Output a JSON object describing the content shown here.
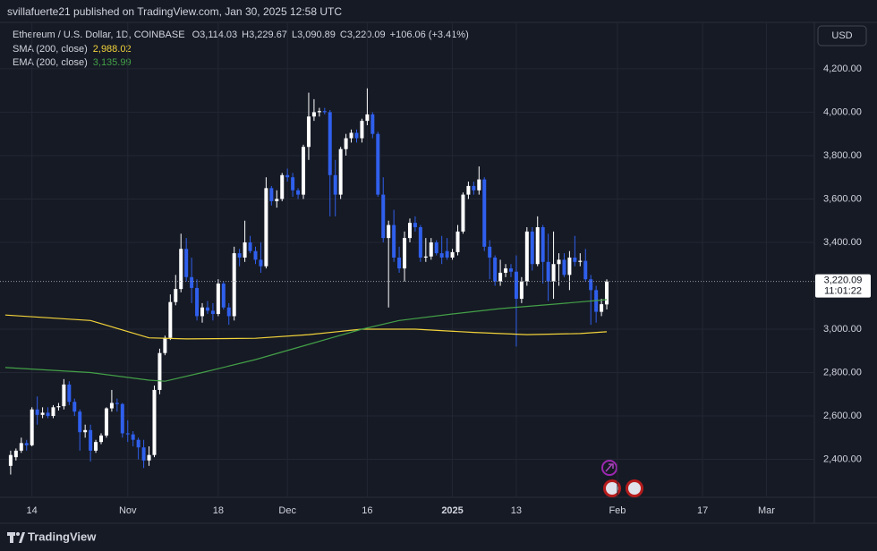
{
  "header": {
    "publisher": "svillafuerte21 published on TradingView.com, Jan 30, 2025 12:58 UTC",
    "currency": "USD",
    "brand": "TradingView"
  },
  "chart_data": {
    "type": "candlestick",
    "title": "Ethereum / U.S. Dollar, 1D, COINBASE",
    "ohlc_legend": {
      "open_key": "O",
      "open": "3,114.03",
      "high_key": "H",
      "high": "3,229.67",
      "low_key": "L",
      "low": "3,090.89",
      "close_key": "C",
      "close": "3,220.09",
      "change": "+106.06 (+3.41%)"
    },
    "up_color": "#ffffff",
    "down_color": "#2f5fec",
    "x": [
      "2024-10-10",
      "2024-10-11",
      "2024-10-12",
      "2024-10-13",
      "2024-10-14",
      "2024-10-15",
      "2024-10-16",
      "2024-10-17",
      "2024-10-18",
      "2024-10-19",
      "2024-10-20",
      "2024-10-21",
      "2024-10-22",
      "2024-10-23",
      "2024-10-24",
      "2024-10-25",
      "2024-10-26",
      "2024-10-27",
      "2024-10-28",
      "2024-10-29",
      "2024-10-30",
      "2024-10-31",
      "2024-11-01",
      "2024-11-02",
      "2024-11-03",
      "2024-11-04",
      "2024-11-05",
      "2024-11-06",
      "2024-11-07",
      "2024-11-08",
      "2024-11-09",
      "2024-11-10",
      "2024-11-11",
      "2024-11-12",
      "2024-11-13",
      "2024-11-14",
      "2024-11-15",
      "2024-11-16",
      "2024-11-17",
      "2024-11-18",
      "2024-11-19",
      "2024-11-20",
      "2024-11-21",
      "2024-11-22",
      "2024-11-23",
      "2024-11-24",
      "2024-11-25",
      "2024-11-26",
      "2024-11-27",
      "2024-11-28",
      "2024-11-29",
      "2024-11-30",
      "2024-12-01",
      "2024-12-02",
      "2024-12-03",
      "2024-12-04",
      "2024-12-05",
      "2024-12-06",
      "2024-12-07",
      "2024-12-08",
      "2024-12-09",
      "2024-12-10",
      "2024-12-11",
      "2024-12-12",
      "2024-12-13",
      "2024-12-14",
      "2024-12-15",
      "2024-12-16",
      "2024-12-17",
      "2024-12-18",
      "2024-12-19",
      "2024-12-20",
      "2024-12-21",
      "2024-12-22",
      "2024-12-23",
      "2024-12-24",
      "2024-12-25",
      "2024-12-26",
      "2024-12-27",
      "2024-12-28",
      "2024-12-29",
      "2024-12-30",
      "2024-12-31",
      "2025-01-01",
      "2025-01-02",
      "2025-01-03",
      "2025-01-04",
      "2025-01-05",
      "2025-01-06",
      "2025-01-07",
      "2025-01-08",
      "2025-01-09",
      "2025-01-10",
      "2025-01-11",
      "2025-01-12",
      "2025-01-13",
      "2025-01-14",
      "2025-01-15",
      "2025-01-16",
      "2025-01-17",
      "2025-01-18",
      "2025-01-19",
      "2025-01-20",
      "2025-01-21",
      "2025-01-22",
      "2025-01-23",
      "2025-01-24",
      "2025-01-25",
      "2025-01-26",
      "2025-01-27",
      "2025-01-28",
      "2025-01-29",
      "2025-01-30"
    ],
    "open": [
      2370,
      2410,
      2440,
      2475,
      2465,
      2630,
      2605,
      2615,
      2600,
      2640,
      2645,
      2745,
      2665,
      2620,
      2525,
      2535,
      2440,
      2480,
      2510,
      2635,
      2660,
      2655,
      2520,
      2515,
      2490,
      2455,
      2395,
      2420,
      2720,
      2890,
      2960,
      3125,
      3185,
      3370,
      3240,
      3190,
      3060,
      3100,
      3085,
      3070,
      3210,
      3100,
      3060,
      3350,
      3330,
      3400,
      3360,
      3320,
      3290,
      3650,
      3590,
      3600,
      3710,
      3700,
      3640,
      3620,
      3840,
      3980,
      4000,
      4005,
      4000,
      3710,
      3620,
      3830,
      3880,
      3905,
      3880,
      3960,
      3990,
      3900,
      3620,
      3420,
      3480,
      3330,
      3280,
      3420,
      3490,
      3470,
      3330,
      3335,
      3400,
      3350,
      3360,
      3330,
      3355,
      3450,
      3620,
      3660,
      3640,
      3690,
      3380,
      3330,
      3220,
      3260,
      3280,
      3265,
      3140,
      3220,
      3450,
      3300,
      3470,
      3310,
      3220,
      3300,
      3320,
      3250,
      3330,
      3310,
      3315,
      3230,
      3180,
      3080,
      3114.03
    ],
    "high": [
      2440,
      2450,
      2500,
      2490,
      2640,
      2690,
      2640,
      2640,
      2650,
      2660,
      2770,
      2760,
      2680,
      2630,
      2560,
      2560,
      2490,
      2520,
      2640,
      2720,
      2680,
      2660,
      2580,
      2530,
      2500,
      2490,
      2460,
      2740,
      2910,
      2970,
      3160,
      3250,
      3440,
      3420,
      3330,
      3230,
      3120,
      3130,
      3120,
      3230,
      3220,
      3120,
      3380,
      3370,
      3500,
      3430,
      3380,
      3400,
      3700,
      3660,
      3640,
      3720,
      3740,
      3720,
      3650,
      3850,
      4090,
      4060,
      4020,
      4020,
      4010,
      3780,
      3840,
      3900,
      3920,
      3920,
      3970,
      4110,
      4000,
      3910,
      3700,
      3500,
      3550,
      3380,
      3450,
      3510,
      3520,
      3480,
      3420,
      3420,
      3410,
      3430,
      3420,
      3370,
      3480,
      3630,
      3680,
      3680,
      3750,
      3700,
      3410,
      3340,
      3320,
      3300,
      3300,
      3340,
      3240,
      3470,
      3470,
      3520,
      3480,
      3440,
      3450,
      3350,
      3350,
      3360,
      3430,
      3350,
      3370,
      3250,
      3200,
      3140,
      3229.67
    ],
    "low": [
      2330,
      2395,
      2430,
      2440,
      2460,
      2560,
      2590,
      2590,
      2590,
      2625,
      2630,
      2650,
      2600,
      2440,
      2500,
      2390,
      2430,
      2470,
      2500,
      2620,
      2620,
      2500,
      2480,
      2460,
      2400,
      2360,
      2370,
      2410,
      2700,
      2880,
      2950,
      3110,
      3170,
      3220,
      3120,
      3040,
      3030,
      3070,
      3040,
      3060,
      3090,
      3020,
      3040,
      3290,
      3310,
      3350,
      3300,
      3260,
      3280,
      3570,
      3560,
      3590,
      3680,
      3610,
      3600,
      3600,
      3780,
      3960,
      3980,
      3990,
      3520,
      3520,
      3600,
      3800,
      3860,
      3860,
      3860,
      3940,
      3880,
      3610,
      3400,
      3100,
      3310,
      3260,
      3220,
      3400,
      3450,
      3310,
      3310,
      3320,
      3340,
      3300,
      3320,
      3320,
      3340,
      3440,
      3600,
      3620,
      3620,
      3360,
      3230,
      3200,
      3200,
      3240,
      3240,
      2920,
      3120,
      3200,
      3270,
      3290,
      3210,
      3130,
      3140,
      3200,
      3240,
      3180,
      3290,
      3290,
      3220,
      3020,
      3030,
      3060,
      3090.89
    ],
    "close": [
      2420,
      2440,
      2475,
      2465,
      2630,
      2605,
      2615,
      2600,
      2640,
      2645,
      2745,
      2665,
      2620,
      2525,
      2535,
      2440,
      2480,
      2510,
      2635,
      2660,
      2655,
      2520,
      2515,
      2490,
      2455,
      2395,
      2420,
      2720,
      2890,
      2960,
      3125,
      3185,
      3370,
      3240,
      3190,
      3060,
      3100,
      3085,
      3070,
      3210,
      3100,
      3060,
      3350,
      3330,
      3400,
      3360,
      3320,
      3290,
      3650,
      3590,
      3600,
      3710,
      3700,
      3640,
      3620,
      3840,
      3980,
      4000,
      4005,
      4000,
      3710,
      3620,
      3830,
      3880,
      3905,
      3880,
      3960,
      3990,
      3900,
      3620,
      3420,
      3480,
      3330,
      3280,
      3420,
      3490,
      3470,
      3330,
      3335,
      3400,
      3350,
      3330,
      3330,
      3355,
      3450,
      3620,
      3660,
      3640,
      3690,
      3380,
      3330,
      3220,
      3260,
      3280,
      3265,
      3140,
      3220,
      3450,
      3300,
      3470,
      3310,
      3220,
      3300,
      3320,
      3250,
      3330,
      3310,
      3315,
      3230,
      3180,
      3080,
      3115,
      3220.09
    ],
    "last_price_label": "3,220.09",
    "countdown": "11:01:22",
    "overlays": [
      {
        "name": "SMA (200, close)",
        "color": "#f2d33a",
        "last_label": "2,988.02",
        "x": [
          "2024-10-09",
          "2024-10-25",
          "2024-11-05",
          "2024-11-12",
          "2024-11-25",
          "2024-12-05",
          "2024-12-15",
          "2024-12-25",
          "2025-01-05",
          "2025-01-15",
          "2025-01-25",
          "2025-01-30"
        ],
        "values": [
          3065,
          3040,
          2960,
          2955,
          2958,
          2975,
          3000,
          3000,
          2985,
          2975,
          2980,
          2988.02
        ]
      },
      {
        "name": "EMA (200, close)",
        "color": "#43a047",
        "last_label": "3,135.99",
        "x": [
          "2024-10-09",
          "2024-10-25",
          "2024-11-05",
          "2024-11-08",
          "2024-11-15",
          "2024-11-25",
          "2024-12-05",
          "2024-12-15",
          "2024-12-22",
          "2025-01-01",
          "2025-01-10",
          "2025-01-20",
          "2025-01-30"
        ],
        "values": [
          2823,
          2800,
          2765,
          2760,
          2800,
          2860,
          2930,
          3000,
          3040,
          3070,
          3095,
          3115,
          3135.99
        ]
      }
    ],
    "xlim": [
      "2024-10-08",
      "2025-03-10"
    ],
    "xticks": [
      {
        "value": "2024-10-14",
        "label": "14"
      },
      {
        "value": "2024-11-01",
        "label": "Nov"
      },
      {
        "value": "2024-11-18",
        "label": "18"
      },
      {
        "value": "2024-12-01",
        "label": "Dec"
      },
      {
        "value": "2024-12-16",
        "label": "16"
      },
      {
        "value": "2025-01-01",
        "label": "2025"
      },
      {
        "value": "2025-01-13",
        "label": "13"
      },
      {
        "value": "2025-02-01",
        "label": "Feb"
      },
      {
        "value": "2025-02-17",
        "label": "17"
      },
      {
        "value": "2025-03-01",
        "label": "Mar"
      }
    ],
    "ylim": [
      2225,
      4414
    ],
    "yticks": [
      {
        "value": 2400,
        "label": "2,400.00"
      },
      {
        "value": 2600,
        "label": "2,600.00"
      },
      {
        "value": 2800,
        "label": "2,800.00"
      },
      {
        "value": 3000,
        "label": "3,000.00"
      },
      {
        "value": 3400,
        "label": "3,400.00"
      },
      {
        "value": 3600,
        "label": "3,600.00"
      },
      {
        "value": 3800,
        "label": "3,800.00"
      },
      {
        "value": 4000,
        "label": "4,000.00"
      },
      {
        "value": 4200,
        "label": "4,200.00"
      }
    ],
    "grid": true
  }
}
